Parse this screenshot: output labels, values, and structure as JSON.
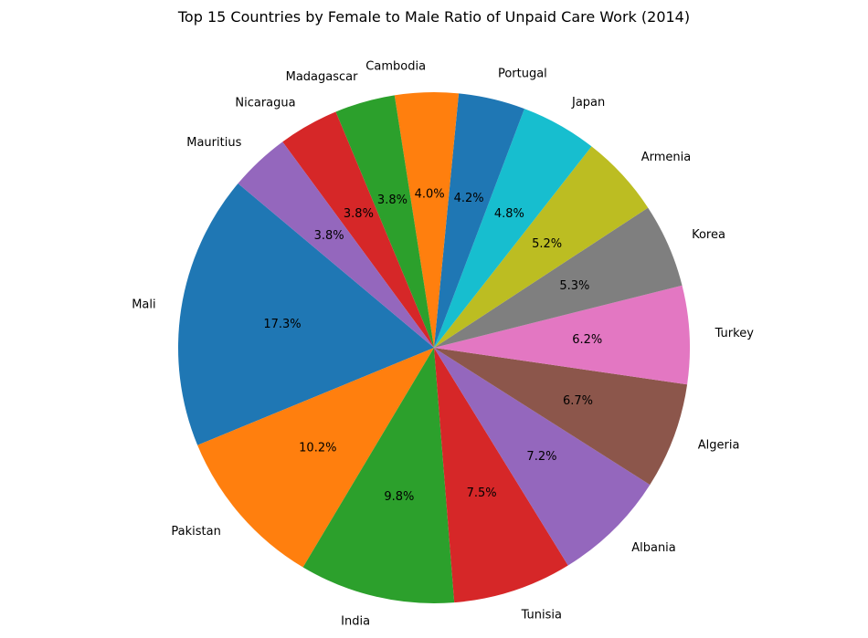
{
  "chart_data": {
    "type": "pie",
    "title": "Top 15 Countries by Female to Male Ratio of Unpaid Care Work (2014)",
    "start_angle_deg": 140,
    "direction": "counterclockwise",
    "slices": [
      {
        "label": "Mali",
        "value": 17.3,
        "pct_text": "17.3%",
        "color": "#1f77b4"
      },
      {
        "label": "Pakistan",
        "value": 10.2,
        "pct_text": "10.2%",
        "color": "#ff7f0e"
      },
      {
        "label": "India",
        "value": 9.8,
        "pct_text": "9.8%",
        "color": "#2ca02c"
      },
      {
        "label": "Tunisia",
        "value": 7.5,
        "pct_text": "7.5%",
        "color": "#d62728"
      },
      {
        "label": "Albania",
        "value": 7.2,
        "pct_text": "7.2%",
        "color": "#9467bd"
      },
      {
        "label": "Algeria",
        "value": 6.7,
        "pct_text": "6.7%",
        "color": "#8c564b"
      },
      {
        "label": "Turkey",
        "value": 6.2,
        "pct_text": "6.2%",
        "color": "#e377c2"
      },
      {
        "label": "Korea",
        "value": 5.3,
        "pct_text": "5.3%",
        "color": "#7f7f7f"
      },
      {
        "label": "Armenia",
        "value": 5.2,
        "pct_text": "5.2%",
        "color": "#bcbd22"
      },
      {
        "label": "Japan",
        "value": 4.8,
        "pct_text": "4.8%",
        "color": "#17becf"
      },
      {
        "label": "Portugal",
        "value": 4.2,
        "pct_text": "4.2%",
        "color": "#1f77b4"
      },
      {
        "label": "Cambodia",
        "value": 4.0,
        "pct_text": "4.0%",
        "color": "#ff7f0e"
      },
      {
        "label": "Madagascar",
        "value": 3.8,
        "pct_text": "3.8%",
        "color": "#2ca02c"
      },
      {
        "label": "Nicaragua",
        "value": 3.8,
        "pct_text": "3.8%",
        "color": "#d62728"
      },
      {
        "label": "Mauritius",
        "value": 3.8,
        "pct_text": "3.8%",
        "color": "#9467bd"
      }
    ]
  }
}
